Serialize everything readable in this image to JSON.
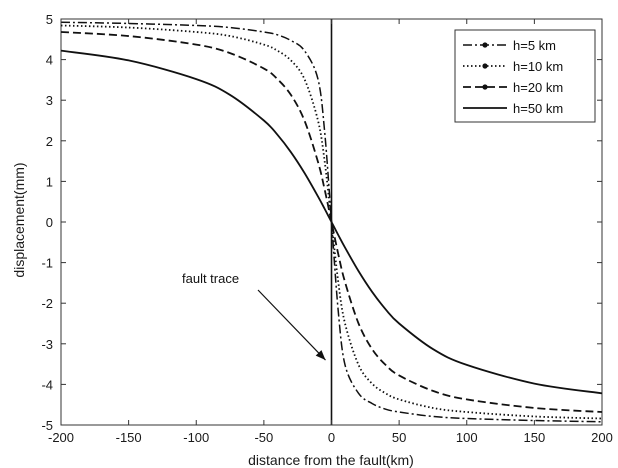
{
  "chart_data": {
    "type": "line",
    "xlabel": "distance from the fault(km)",
    "ylabel": "displacement(mm)",
    "xlim": [
      -200,
      200
    ],
    "ylim": [
      -5,
      5
    ],
    "xticks": [
      -200,
      -150,
      -100,
      -50,
      0,
      50,
      100,
      150,
      200
    ],
    "yticks": [
      -5,
      -4,
      -3,
      -2,
      -1,
      0,
      1,
      2,
      3,
      4,
      5
    ],
    "grid": false,
    "legend_position": "top-right",
    "annotation": {
      "text": "fault trace",
      "points_to": [
        0,
        -3.4
      ]
    },
    "x": [
      -200,
      -150,
      -100,
      -75,
      -50,
      -40,
      -30,
      -20,
      -10,
      -5,
      0,
      5,
      10,
      20,
      30,
      40,
      50,
      75,
      100,
      150,
      200
    ],
    "series": [
      {
        "name": "h=5 km",
        "style": "dash-dot",
        "values": [
          4.92,
          4.89,
          4.84,
          4.79,
          4.68,
          4.61,
          4.47,
          4.22,
          3.52,
          2.2,
          0,
          -2.2,
          -3.52,
          -4.22,
          -4.47,
          -4.61,
          -4.68,
          -4.79,
          -4.84,
          -4.89,
          -4.92
        ]
      },
      {
        "name": "h=10 km",
        "style": "dotted",
        "values": [
          4.84,
          4.79,
          4.68,
          4.58,
          4.37,
          4.22,
          3.98,
          3.52,
          2.5,
          1.48,
          0,
          -1.48,
          -2.5,
          -3.52,
          -3.98,
          -4.22,
          -4.37,
          -4.58,
          -4.68,
          -4.79,
          -4.84
        ]
      },
      {
        "name": "h=20 km",
        "style": "dashed",
        "values": [
          4.68,
          4.58,
          4.37,
          4.16,
          3.78,
          3.52,
          3.13,
          2.5,
          1.48,
          0.79,
          0,
          -0.79,
          -1.48,
          -2.5,
          -3.13,
          -3.52,
          -3.78,
          -4.16,
          -4.37,
          -4.58,
          -4.68
        ]
      },
      {
        "name": "h=50 km",
        "style": "solid",
        "values": [
          4.22,
          3.98,
          3.52,
          3.13,
          2.5,
          2.15,
          1.72,
          1.21,
          0.63,
          0.32,
          0,
          -0.32,
          -0.63,
          -1.21,
          -1.72,
          -2.15,
          -2.5,
          -3.13,
          -3.52,
          -3.98,
          -4.22
        ]
      }
    ]
  },
  "colors": {
    "ink": "#111111",
    "axis": "#333333",
    "background": "#ffffff"
  }
}
